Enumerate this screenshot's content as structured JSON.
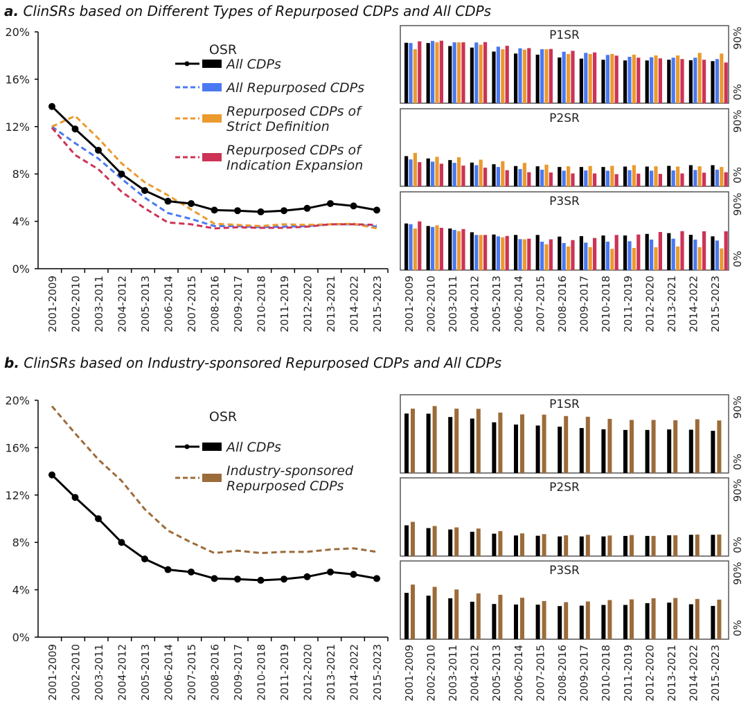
{
  "panels": [
    {
      "id": "a",
      "title_letter": "a.",
      "title_text": " ClinSRs based on Different Types of Repurposed CDPs and All CDPs"
    },
    {
      "id": "b",
      "title_letter": "b.",
      "title_text": " ClinSRs based on Industry-sponsored Repurposed CDPs and All CDPs"
    }
  ],
  "chart_data": [
    {
      "type": "line",
      "panel": "a",
      "title": "OSR",
      "x": [
        "2001-2009",
        "2002-2010",
        "2003-2011",
        "2004-2012",
        "2005-2013",
        "2006-2014",
        "2007-2015",
        "2008-2016",
        "2009-2017",
        "2010-2018",
        "2011-2019",
        "2012-2020",
        "2013-2021",
        "2014-2022",
        "2015-2023"
      ],
      "ylim": [
        0,
        20
      ],
      "yticks": [
        "0%",
        "4%",
        "8%",
        "12%",
        "16%",
        "20%"
      ],
      "ytick_values": [
        0,
        4,
        8,
        12,
        16,
        20
      ],
      "legend_placement": "top-right",
      "series": [
        {
          "name": "All CDPs",
          "color": "#000000",
          "style": "solid-marker",
          "values": [
            13.7,
            11.8,
            10.0,
            8.0,
            6.6,
            5.7,
            5.5,
            4.95,
            4.9,
            4.8,
            4.9,
            5.1,
            5.5,
            5.3,
            4.95
          ]
        },
        {
          "name": "All Repurposed CDPs",
          "color": "#4a78f0",
          "style": "dashed",
          "values": [
            12.0,
            10.6,
            9.3,
            7.6,
            6.0,
            4.7,
            4.2,
            3.6,
            3.6,
            3.5,
            3.55,
            3.6,
            3.75,
            3.75,
            3.55
          ]
        },
        {
          "name": "Repurposed CDPs of Strict Definition",
          "color": "#eb9a2e",
          "style": "dashed",
          "values": [
            12.0,
            12.9,
            11.0,
            8.9,
            7.3,
            6.2,
            5.0,
            3.8,
            3.7,
            3.6,
            3.75,
            3.7,
            3.75,
            3.8,
            3.4
          ]
        },
        {
          "name": "Repurposed CDPs of Indication Expansion",
          "color": "#cc3355",
          "style": "dashed",
          "values": [
            11.9,
            9.6,
            8.4,
            6.5,
            5.1,
            3.9,
            3.75,
            3.4,
            3.5,
            3.45,
            3.45,
            3.55,
            3.75,
            3.75,
            3.7
          ]
        }
      ],
      "legend_lines": [
        [
          "All CDPs"
        ],
        [
          "All Repurposed CDPs"
        ],
        [
          "Repurposed CDPs of",
          "Strict Definition"
        ],
        [
          "Repurposed CDPs of",
          "Indication Expansion"
        ]
      ]
    },
    {
      "type": "bar",
      "panel": "a",
      "categories": [
        "2001-2009",
        "2002-2010",
        "2003-2011",
        "2004-2012",
        "2005-2013",
        "2006-2014",
        "2007-2015",
        "2008-2016",
        "2009-2017",
        "2010-2018",
        "2011-2019",
        "2012-2020",
        "2013-2021",
        "2014-2022",
        "2015-2023"
      ],
      "ylim": [
        0,
        90
      ],
      "yticks": [
        "0%",
        "90%"
      ],
      "subplots": [
        {
          "title": "P1SR",
          "series": [
            {
              "name": "All CDPs",
              "color": "#000000",
              "values": [
                70.1,
                69.8,
                66.3,
                64.5,
                59.9,
                57.6,
                56.3,
                53.0,
                51.7,
                50.4,
                49.6,
                49.6,
                50.4,
                49.8,
                48.8
              ]
            },
            {
              "name": "All Repurposed CDPs",
              "color": "#4a78f0",
              "values": [
                69.8,
                72.2,
                70.6,
                70.4,
                65.6,
                63.7,
                62.6,
                59.7,
                58.4,
                56.0,
                53.8,
                53.3,
                52.8,
                52.8,
                51.2
              ]
            },
            {
              "name": "Repurposed CDPs of Strict Definition",
              "color": "#eb9a2e",
              "values": [
                62.6,
                70.6,
                70.6,
                67.9,
                62.6,
                62.1,
                62.6,
                57.1,
                57.1,
                57.1,
                56.3,
                55.4,
                55.4,
                58.4,
                57.6
              ]
            },
            {
              "name": "Repurposed CDPs of Indication Expansion",
              "color": "#cc3355",
              "values": [
                71.8,
                72.5,
                70.6,
                70.9,
                66.6,
                63.9,
                62.9,
                60.8,
                58.9,
                55.2,
                52.8,
                52.0,
                51.2,
                50.4,
                47.2
              ]
            }
          ]
        },
        {
          "title": "P2SR",
          "series": [
            {
              "name": "All CDPs",
              "color": "#000000",
              "values": [
                35.0,
                32.3,
                30.4,
                27.5,
                25.6,
                23.5,
                23.2,
                22.4,
                22.4,
                22.4,
                22.9,
                22.9,
                23.7,
                24.5,
                24.5
              ]
            },
            {
              "name": "All Repurposed CDPs",
              "color": "#4a78f0",
              "values": [
                31.2,
                28.6,
                27.2,
                24.5,
                22.4,
                20.0,
                19.2,
                18.1,
                18.4,
                18.1,
                18.7,
                18.1,
                18.4,
                18.9,
                19.2
              ]
            },
            {
              "name": "Repurposed CDPs of Strict Definition",
              "color": "#eb9a2e",
              "values": [
                38.7,
                34.2,
                33.7,
                30.9,
                29.1,
                27.2,
                25.1,
                23.2,
                23.5,
                23.7,
                24.5,
                23.2,
                22.9,
                23.2,
                22.4
              ]
            },
            {
              "name": "Repurposed CDPs of Indication Expansion",
              "color": "#cc3355",
              "values": [
                28.0,
                26.2,
                24.0,
                21.6,
                18.7,
                16.3,
                16.0,
                14.9,
                14.9,
                14.1,
                14.7,
                14.4,
                14.9,
                15.8,
                16.3
              ]
            }
          ]
        },
        {
          "title": "P3SR",
          "series": [
            {
              "name": "All CDPs",
              "color": "#000000",
              "values": [
                53.6,
                50.7,
                47.8,
                43.5,
                40.9,
                40.4,
                40.4,
                38.5,
                39.0,
                39.8,
                39.8,
                41.6,
                42.5,
                40.6,
                38.8
              ]
            },
            {
              "name": "All Repurposed CDPs",
              "color": "#4a78f0",
              "values": [
                52.8,
                49.6,
                46.2,
                40.4,
                38.8,
                35.6,
                32.7,
                31.1,
                31.6,
                32.7,
                33.2,
                35.1,
                36.1,
                35.1,
                34.0
              ]
            },
            {
              "name": "Repurposed CDPs of Strict Definition",
              "color": "#eb9a2e",
              "values": [
                47.8,
                51.5,
                44.8,
                40.4,
                37.7,
                35.4,
                29.7,
                27.1,
                26.3,
                24.4,
                25.5,
                26.3,
                27.1,
                26.3,
                24.9
              ]
            },
            {
              "name": "Repurposed CDPs of Indication Expansion",
              "color": "#cc3355",
              "values": [
                56.0,
                48.6,
                47.2,
                40.4,
                39.3,
                36.1,
                35.4,
                34.5,
                36.9,
                40.4,
                40.9,
                43.8,
                44.8,
                44.6,
                44.6
              ]
            }
          ]
        }
      ]
    },
    {
      "type": "line",
      "panel": "b",
      "title": "OSR",
      "x": [
        "2001-2009",
        "2002-2010",
        "2003-2011",
        "2004-2012",
        "2005-2013",
        "2006-2014",
        "2007-2015",
        "2008-2016",
        "2009-2017",
        "2010-2018",
        "2011-2019",
        "2012-2020",
        "2013-2021",
        "2014-2022",
        "2015-2023"
      ],
      "ylim": [
        0,
        20
      ],
      "yticks": [
        "0%",
        "4%",
        "8%",
        "12%",
        "16%",
        "20%"
      ],
      "ytick_values": [
        0,
        4,
        8,
        12,
        16,
        20
      ],
      "legend_placement": "top-right",
      "series": [
        {
          "name": "All CDPs",
          "color": "#000000",
          "style": "solid-marker",
          "values": [
            13.7,
            11.8,
            10.0,
            8.0,
            6.6,
            5.7,
            5.5,
            4.95,
            4.9,
            4.8,
            4.9,
            5.1,
            5.5,
            5.3,
            4.95
          ]
        },
        {
          "name": "Industry-sponsored Repurposed CDPs",
          "color": "#9c6b3a",
          "style": "dashed",
          "values": [
            19.5,
            17.2,
            15.0,
            13.2,
            10.8,
            9.0,
            8.0,
            7.1,
            7.3,
            7.1,
            7.2,
            7.2,
            7.4,
            7.5,
            7.2
          ]
        }
      ],
      "legend_lines": [
        [
          "All CDPs"
        ],
        [
          "Industry-sponsored",
          "Repurposed CDPs"
        ]
      ]
    },
    {
      "type": "bar",
      "panel": "b",
      "categories": [
        "2001-2009",
        "2002-2010",
        "2003-2011",
        "2004-2012",
        "2005-2013",
        "2006-2014",
        "2007-2015",
        "2008-2016",
        "2009-2017",
        "2010-2018",
        "2011-2019",
        "2012-2020",
        "2013-2021",
        "2014-2022",
        "2015-2023"
      ],
      "ylim": [
        0,
        90
      ],
      "yticks": [
        "0%",
        "90%"
      ],
      "subplots": [
        {
          "title": "P1SR",
          "series": [
            {
              "name": "All CDPs",
              "color": "#000000",
              "values": [
                68.4,
                68.2,
                64.4,
                62.6,
                58.3,
                55.7,
                54.6,
                53.3,
                51.7,
                50.3,
                49.5,
                49.5,
                50.1,
                49.8,
                48.5
              ]
            },
            {
              "name": "Industry-sponsored Repurposed CDPs",
              "color": "#9c6b3a",
              "values": [
                74.0,
                77.0,
                74.0,
                73.8,
                69.5,
                67.4,
                67.1,
                65.5,
                64.7,
                62.3,
                61.0,
                61.0,
                60.7,
                61.8,
                60.4
              ]
            }
          ]
        },
        {
          "title": "P2SR",
          "series": [
            {
              "name": "All CDPs",
              "color": "#000000",
              "values": [
                35.4,
                32.2,
                30.6,
                28.0,
                25.8,
                23.7,
                23.4,
                22.6,
                22.6,
                22.6,
                23.2,
                23.2,
                24.0,
                24.5,
                24.5
              ]
            },
            {
              "name": "Industry-sponsored Repurposed CDPs",
              "color": "#9c6b3a",
              "values": [
                39.4,
                34.6,
                33.0,
                31.7,
                28.8,
                26.1,
                25.3,
                24.0,
                24.5,
                23.7,
                24.2,
                23.2,
                24.0,
                24.8,
                24.8
              ]
            }
          ]
        },
        {
          "title": "P3SR",
          "series": [
            {
              "name": "All CDPs",
              "color": "#000000",
              "values": [
                53.3,
                50.1,
                47.1,
                43.1,
                40.5,
                39.9,
                39.7,
                38.1,
                38.6,
                39.4,
                39.4,
                41.5,
                42.1,
                40.2,
                38.3
              ]
            },
            {
              "name": "Industry-sponsored Repurposed CDPs",
              "color": "#9c6b3a",
              "values": [
                62.8,
                60.2,
                57.2,
                52.7,
                51.1,
                47.7,
                43.9,
                42.6,
                43.4,
                45.0,
                45.8,
                47.1,
                47.4,
                46.3,
                45.5
              ]
            }
          ]
        }
      ]
    }
  ]
}
